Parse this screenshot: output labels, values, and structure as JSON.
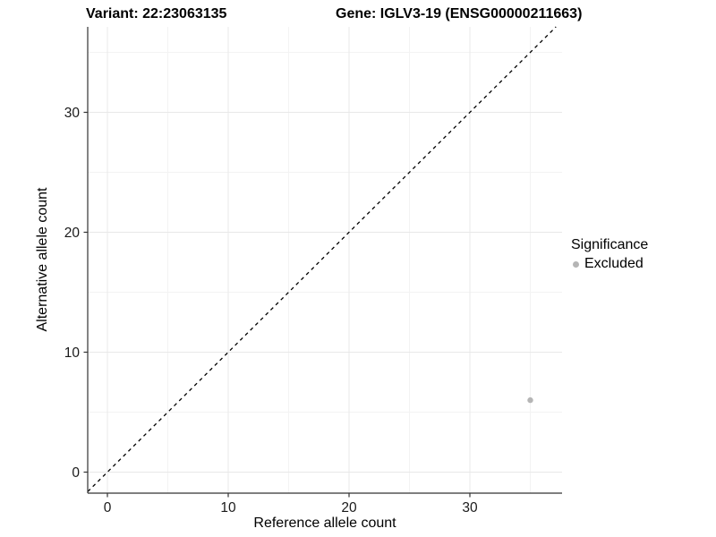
{
  "chart_data": {
    "type": "scatter",
    "title_left": "Variant: 22:23063135",
    "title_right": "Gene: IGLV3-19 (ENSG00000211663)",
    "xlabel": "Reference allele count",
    "ylabel": "Alternative allele count",
    "x_ticks": [
      0,
      10,
      20,
      30
    ],
    "y_ticks": [
      0,
      10,
      20,
      30
    ],
    "x_minor_ticks": [
      5,
      15,
      25,
      35
    ],
    "y_minor_ticks": [
      5,
      15,
      25,
      35
    ],
    "xlim": [
      -1.6,
      37.6
    ],
    "ylim": [
      -1.7,
      37.1
    ],
    "grid": "major and minor gridlines, very light gray, white background",
    "legend_position": "right",
    "legend": {
      "title": "Significance",
      "items": [
        {
          "label": "Excluded",
          "color": "#b5b5b5"
        }
      ]
    },
    "series": [
      {
        "name": "Excluded",
        "color": "#b5b5b5",
        "points": [
          {
            "x": 35,
            "y": 6
          }
        ]
      }
    ],
    "reference_line": {
      "kind": "identity y = x",
      "style": "dashed",
      "color": "#000000"
    }
  },
  "style_colors": {
    "axis_line": "#333333",
    "tick_text": "#1a1a1a",
    "grid_major": "#e8e8e8",
    "grid_minor": "#f3f3f3"
  }
}
